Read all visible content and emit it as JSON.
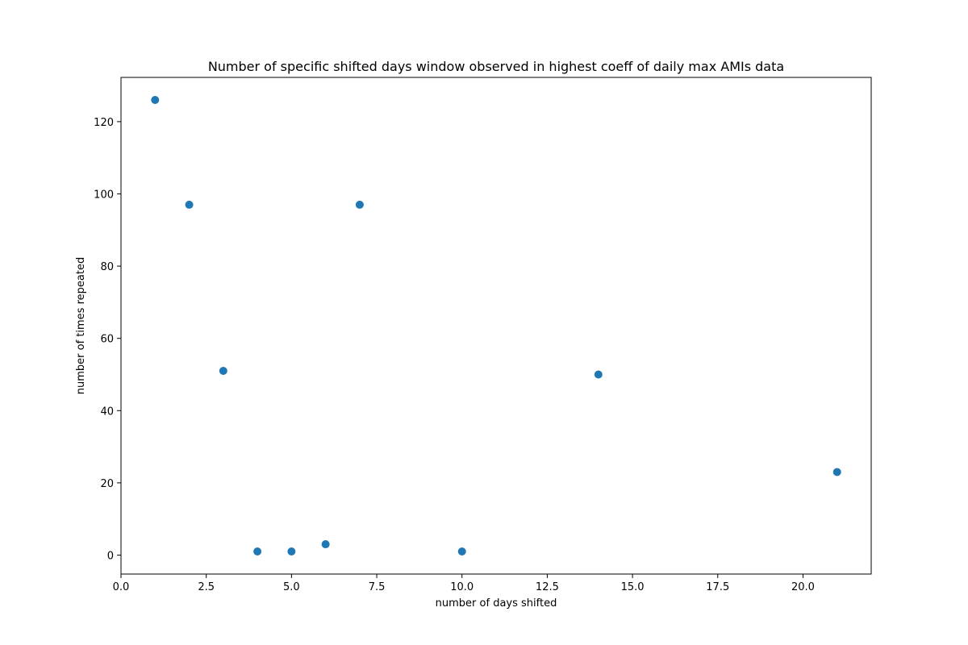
{
  "chart_data": {
    "type": "scatter",
    "title": "Number of specific shifted days window observed in highest coeff of daily max AMIs data",
    "xlabel": "number of days shifted",
    "ylabel": "number of times repeated",
    "xlim": [
      0,
      22
    ],
    "ylim": [
      -5.25,
      132.25
    ],
    "xticks": [
      0,
      2.5,
      5,
      7.5,
      10,
      12.5,
      15,
      17.5,
      20
    ],
    "xtick_labels": [
      "0.0",
      "2.5",
      "5.0",
      "7.5",
      "10.0",
      "12.5",
      "15.0",
      "17.5",
      "20.0"
    ],
    "yticks": [
      0,
      20,
      40,
      60,
      80,
      100,
      120
    ],
    "ytick_labels": [
      "0",
      "20",
      "40",
      "60",
      "80",
      "100",
      "120"
    ],
    "grid": false,
    "marker_color": "#1f77b4",
    "points": [
      {
        "x": 1,
        "y": 126
      },
      {
        "x": 2,
        "y": 97
      },
      {
        "x": 3,
        "y": 51
      },
      {
        "x": 4,
        "y": 1
      },
      {
        "x": 5,
        "y": 1
      },
      {
        "x": 6,
        "y": 3
      },
      {
        "x": 7,
        "y": 97
      },
      {
        "x": 10,
        "y": 1
      },
      {
        "x": 14,
        "y": 50
      },
      {
        "x": 21,
        "y": 23
      }
    ]
  }
}
